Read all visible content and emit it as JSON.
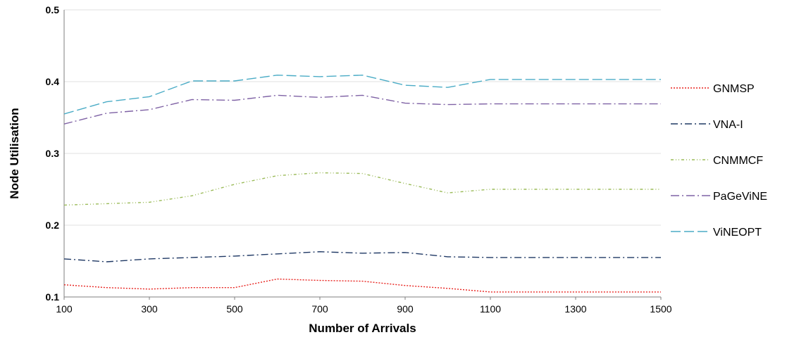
{
  "chart_data": {
    "type": "line",
    "title": "",
    "xlabel": "Number of Arrivals",
    "ylabel": "Node Utilisation",
    "x": [
      100,
      200,
      300,
      400,
      500,
      600,
      700,
      800,
      900,
      1000,
      1100,
      1200,
      1300,
      1400,
      1500
    ],
    "x_ticks": [
      "100",
      "300",
      "500",
      "700",
      "900",
      "1100",
      "1300",
      "1500"
    ],
    "y_ticks": [
      "0.1",
      "0.2",
      "0.3",
      "0.4",
      "0.5"
    ],
    "xlim": [
      100,
      1500
    ],
    "ylim": [
      0.1,
      0.5
    ],
    "grid": "horizontal",
    "legend_position": "right",
    "series": [
      {
        "name": "GNMSP",
        "color": "#e8231f",
        "dash": "2,2",
        "values": [
          0.117,
          0.113,
          0.111,
          0.113,
          0.113,
          0.125,
          0.123,
          0.122,
          0.116,
          0.112,
          0.107,
          0.107,
          0.107,
          0.107,
          0.107
        ]
      },
      {
        "name": "VNA-I",
        "color": "#1f3864",
        "dash": "10,4,2,4",
        "values": [
          0.153,
          0.149,
          0.153,
          0.155,
          0.157,
          0.16,
          0.163,
          0.161,
          0.162,
          0.156,
          0.155,
          0.155,
          0.155,
          0.155,
          0.155
        ]
      },
      {
        "name": "CNMMCF",
        "color": "#9bbb59",
        "dash": "4,3,1,3,1,3",
        "values": [
          0.228,
          0.23,
          0.232,
          0.241,
          0.257,
          0.269,
          0.273,
          0.272,
          0.258,
          0.245,
          0.25,
          0.25,
          0.25,
          0.25,
          0.25
        ]
      },
      {
        "name": "PaGeViNE",
        "color": "#7f62a5",
        "dash": "12,4,2,4",
        "values": [
          0.341,
          0.356,
          0.361,
          0.375,
          0.374,
          0.381,
          0.378,
          0.381,
          0.37,
          0.368,
          0.369,
          0.369,
          0.369,
          0.369,
          0.369
        ]
      },
      {
        "name": "ViNEOPT",
        "color": "#4bacc6",
        "dash": "14,5",
        "values": [
          0.355,
          0.372,
          0.379,
          0.401,
          0.401,
          0.409,
          0.407,
          0.409,
          0.395,
          0.392,
          0.403,
          0.403,
          0.403,
          0.403,
          0.403
        ]
      }
    ]
  }
}
